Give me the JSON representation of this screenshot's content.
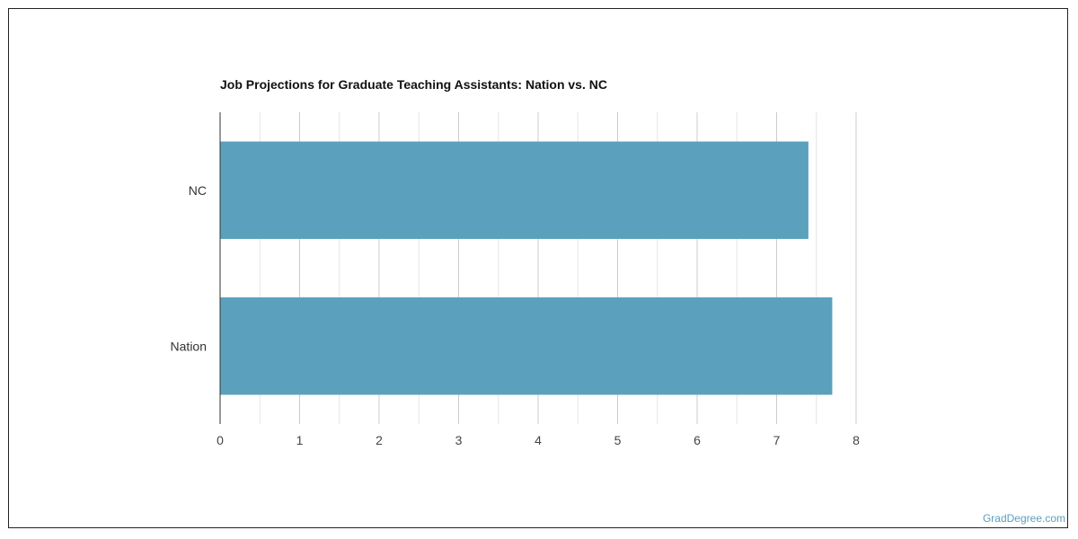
{
  "chart_data": {
    "type": "bar",
    "orientation": "horizontal",
    "title": "Job Projections for Graduate Teaching Assistants: Nation vs. NC",
    "categories": [
      "NC",
      "Nation"
    ],
    "values": [
      7.4,
      7.7
    ],
    "xlim": [
      0,
      8
    ],
    "x_ticks": [
      "0",
      "1",
      "2",
      "3",
      "4",
      "5",
      "6",
      "7",
      "8"
    ],
    "grid": true,
    "bar_color": "#5ba1bd"
  },
  "watermark": "GradDegree.com"
}
